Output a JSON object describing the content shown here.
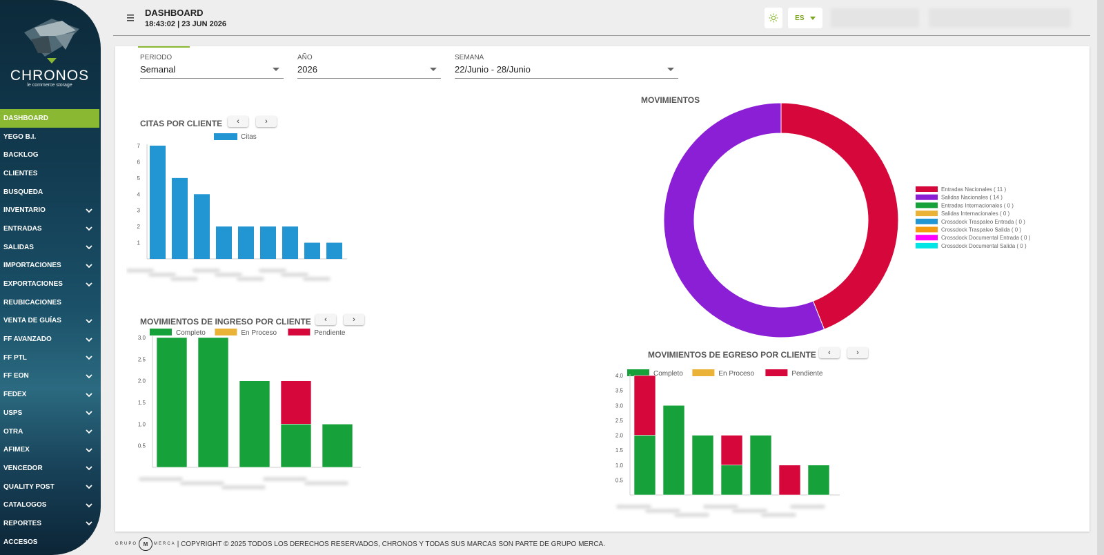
{
  "app": {
    "brand": "CHRONOS",
    "tagline": "le commerce storage"
  },
  "header": {
    "title": "DASHBOARD",
    "datetime": "18:43:02 | 23 JUN 2026",
    "lang": "ES"
  },
  "sidebar": {
    "items": [
      {
        "label": "DASHBOARD",
        "active": true,
        "expandable": false
      },
      {
        "label": "YEGO B.I.",
        "expandable": false
      },
      {
        "label": "BACKLOG",
        "expandable": false
      },
      {
        "label": "CLIENTES",
        "expandable": false
      },
      {
        "label": "BUSQUEDA",
        "expandable": false
      },
      {
        "label": "INVENTARIO",
        "expandable": true
      },
      {
        "label": "ENTRADAS",
        "expandable": true
      },
      {
        "label": "SALIDAS",
        "expandable": true
      },
      {
        "label": "IMPORTACIONES",
        "expandable": true
      },
      {
        "label": "EXPORTACIONES",
        "expandable": true
      },
      {
        "label": "REUBICACIONES",
        "expandable": false
      },
      {
        "label": "VENTA DE GUÍAS",
        "expandable": true
      },
      {
        "label": "FF AVANZADO",
        "expandable": true
      },
      {
        "label": "FF PTL",
        "expandable": true
      },
      {
        "label": "FF EON",
        "expandable": true
      },
      {
        "label": "FEDEX",
        "expandable": true
      },
      {
        "label": "USPS",
        "expandable": true
      },
      {
        "label": "OTRA",
        "expandable": true
      },
      {
        "label": "AFIMEX",
        "expandable": true
      },
      {
        "label": "VENCEDOR",
        "expandable": true
      },
      {
        "label": "QUALITY POST",
        "expandable": true
      },
      {
        "label": "CATALOGOS",
        "expandable": true
      },
      {
        "label": "REPORTES",
        "expandable": true
      },
      {
        "label": "ACCESOS",
        "expandable": true
      }
    ]
  },
  "filters": {
    "periodo": {
      "label": "PERIODO",
      "value": "Semanal"
    },
    "anio": {
      "label": "AÑO",
      "value": "2026"
    },
    "semana": {
      "label": "SEMANA",
      "value": "22/Junio - 28/Junio"
    }
  },
  "sections": {
    "citas": "CITAS POR CLIENTE",
    "movimientos": "MOVIMIENTOS",
    "ingreso": "MOVIMIENTOS DE INGRESO POR CLIENTE",
    "egreso": "MOVIMIENTOS DE EGRESO POR CLIENTE"
  },
  "colors": {
    "accent": "#8ab832",
    "blue": "#2196d3",
    "green": "#16a13a",
    "yellow": "#eab236",
    "red": "#d6083b",
    "purple": "#8a1fd6"
  },
  "chart_data": [
    {
      "type": "bar",
      "title": "CITAS POR CLIENTE",
      "series": [
        {
          "name": "Citas",
          "values": [
            7,
            5,
            4,
            2,
            2,
            2,
            2,
            1,
            1
          ]
        }
      ],
      "ylim": [
        0,
        7
      ],
      "yticks": [
        "1",
        "2",
        "3",
        "4",
        "5",
        "6",
        "7"
      ]
    },
    {
      "type": "pie",
      "title": "MOVIMIENTOS",
      "labels": [
        "Entradas Nacionales ( 11 )",
        "Salidas Nacionales ( 14 )",
        "Entradas Internacionales ( 0 )",
        "Salidas Internacionales ( 0 )",
        "Crossdock Traspaleo Entrada ( 0 )",
        "Crossdock Traspaleo Salida ( 0 )",
        "Crossdock Documental Entrada ( 0 )",
        "Crossdock Documental Salida ( 0 )"
      ],
      "values": [
        11,
        14,
        0,
        0,
        0,
        0,
        0,
        0
      ],
      "colors": [
        "#d6083b",
        "#8a1fd6",
        "#16a13a",
        "#eab236",
        "#2196d3",
        "#f39c12",
        "#ff00ff",
        "#00e5e5"
      ],
      "legend": "right"
    },
    {
      "type": "bar",
      "title": "MOVIMIENTOS DE INGRESO POR CLIENTE",
      "stacked": true,
      "series": [
        {
          "name": "Completo",
          "values": [
            3,
            3,
            2,
            1,
            1
          ]
        },
        {
          "name": "En Proceso",
          "values": [
            0,
            0,
            0,
            0,
            0
          ]
        },
        {
          "name": "Pendiente",
          "values": [
            0,
            0,
            0,
            1,
            0
          ]
        }
      ],
      "ylim": [
        0,
        3
      ],
      "yticks": [
        "0.5",
        "1.0",
        "1.5",
        "2.0",
        "2.5",
        "3.0"
      ]
    },
    {
      "type": "bar",
      "title": "MOVIMIENTOS DE EGRESO POR CLIENTE",
      "stacked": true,
      "series": [
        {
          "name": "Completo",
          "values": [
            2,
            3,
            2,
            1,
            2,
            0,
            1
          ]
        },
        {
          "name": "En Proceso",
          "values": [
            0,
            0,
            0,
            0,
            0,
            0,
            0
          ]
        },
        {
          "name": "Pendiente",
          "values": [
            2,
            0,
            0,
            1,
            0,
            1,
            0
          ]
        }
      ],
      "ylim": [
        0,
        4
      ],
      "yticks": [
        "0.5",
        "1.0",
        "1.5",
        "2.0",
        "2.5",
        "3.0",
        "3.5",
        "4.0"
      ]
    }
  ],
  "footer": {
    "brand_mark": "GRUPO MERCA",
    "text": "| COPYRIGHT © 2025 TODOS LOS DERECHOS RESERVADOS, CHRONOS Y TODAS SUS MARCAS SON PARTE DE GRUPO MERCA."
  }
}
